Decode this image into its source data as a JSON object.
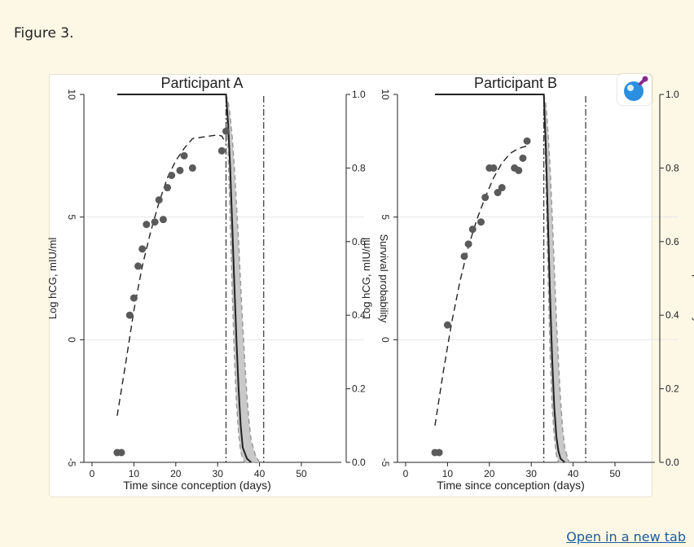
{
  "caption": "Figure 3.",
  "link_text": "Open in a new tab",
  "colors": {
    "curve": "#222222",
    "points": "#5a5a5a",
    "band": "#c9c9c9",
    "ref_line": "#e6e6e6",
    "link": "#1a5c9a"
  },
  "icons": {
    "zoom": "magnifier-icon"
  },
  "chart_data": [
    {
      "type": "scatter",
      "title": "Participant A",
      "xlabel": "Time since conception (days)",
      "ylabel": "Log hCG, mIU/ml",
      "y2label": "Survival probability",
      "xlim": [
        0,
        50
      ],
      "ylim": [
        -5,
        10
      ],
      "y2lim": [
        0,
        1
      ],
      "xticks": [
        "0",
        "10",
        "20",
        "30",
        "40",
        "50"
      ],
      "yticks": [
        "-5",
        "0",
        "5",
        "10"
      ],
      "y2ticks": [
        "0.0",
        "0.2",
        "0.4",
        "0.6",
        "0.8",
        "1.0"
      ],
      "points": {
        "x": [
          6,
          7,
          9,
          10,
          11,
          12,
          13,
          15,
          16,
          17,
          18,
          19,
          21,
          22,
          24,
          31,
          32
        ],
        "y": [
          -4.6,
          -4.6,
          1.0,
          1.7,
          3.0,
          3.7,
          4.7,
          4.8,
          5.7,
          4.9,
          6.2,
          6.7,
          6.9,
          7.5,
          7.0,
          7.7,
          8.5
        ]
      },
      "fitted_curve": {
        "x": [
          6,
          8,
          10,
          12,
          14,
          16,
          18,
          20,
          22,
          24,
          26,
          28,
          30,
          31,
          32
        ],
        "y": [
          -3.1,
          -1.0,
          1.2,
          3.0,
          4.4,
          5.6,
          6.6,
          7.3,
          7.8,
          8.2,
          8.25,
          8.3,
          8.35,
          8.3,
          8.0
        ]
      },
      "survival": {
        "x": [
          6,
          32,
          32.5,
          33,
          33.5,
          34,
          34.5,
          35,
          35.5,
          36,
          37,
          38
        ],
        "y": [
          1.0,
          1.0,
          0.92,
          0.8,
          0.64,
          0.48,
          0.33,
          0.2,
          0.1,
          0.04,
          0.01,
          0.0
        ]
      },
      "survival_band": {
        "x": [
          32,
          32.5,
          33,
          33.5,
          34,
          34.5,
          35,
          35.5,
          36,
          36.5,
          37,
          37.5,
          38,
          39,
          40
        ],
        "upper": [
          1.0,
          0.98,
          0.94,
          0.88,
          0.8,
          0.7,
          0.6,
          0.48,
          0.37,
          0.27,
          0.18,
          0.11,
          0.06,
          0.02,
          0.0
        ],
        "lower": [
          1.0,
          0.85,
          0.66,
          0.46,
          0.29,
          0.16,
          0.08,
          0.03,
          0.01,
          0.0,
          0.0,
          0.0,
          0.0,
          0.0,
          0.0
        ]
      },
      "vlines": [
        32,
        41
      ]
    },
    {
      "type": "scatter",
      "title": "Participant B",
      "xlabel": "Time since conception (days)",
      "ylabel": "Log hCG, mIU/ml",
      "y2label": "Survival probability",
      "xlim": [
        0,
        50
      ],
      "ylim": [
        -5,
        10
      ],
      "y2lim": [
        0,
        1
      ],
      "xticks": [
        "0",
        "10",
        "20",
        "30",
        "40",
        "50"
      ],
      "yticks": [
        "-5",
        "0",
        "5",
        "10"
      ],
      "y2ticks": [
        "0.0",
        "0.2",
        "0.4",
        "0.6",
        "0.8",
        "1.0"
      ],
      "points": {
        "x": [
          7,
          8,
          10,
          14,
          15,
          16,
          18,
          19,
          20,
          21,
          22,
          23,
          26,
          27,
          28,
          29
        ],
        "y": [
          -4.6,
          -4.6,
          0.6,
          3.4,
          3.9,
          4.5,
          4.8,
          5.8,
          7.0,
          7.0,
          6.0,
          6.2,
          7.0,
          6.9,
          7.4,
          8.1
        ]
      },
      "fitted_curve": {
        "x": [
          7,
          9,
          11,
          13,
          15,
          17,
          19,
          21,
          23,
          25,
          27,
          29
        ],
        "y": [
          -3.5,
          -1.3,
          0.7,
          2.4,
          3.8,
          4.9,
          5.8,
          6.6,
          7.2,
          7.6,
          7.8,
          7.9
        ]
      },
      "survival": {
        "x": [
          7,
          33,
          33.5,
          34,
          34.5,
          35,
          35.5,
          36,
          36.5,
          37,
          38
        ],
        "y": [
          1.0,
          1.0,
          0.85,
          0.65,
          0.45,
          0.28,
          0.15,
          0.07,
          0.03,
          0.01,
          0.0
        ]
      },
      "survival_band": {
        "x": [
          33,
          33.5,
          34,
          34.5,
          35,
          35.5,
          36,
          36.5,
          37,
          37.5,
          38,
          39
        ],
        "upper": [
          1.0,
          0.97,
          0.9,
          0.8,
          0.67,
          0.53,
          0.39,
          0.27,
          0.17,
          0.09,
          0.04,
          0.0
        ],
        "lower": [
          1.0,
          0.78,
          0.52,
          0.3,
          0.15,
          0.07,
          0.02,
          0.0,
          0.0,
          0.0,
          0.0,
          0.0
        ]
      },
      "vlines": [
        33,
        43
      ]
    }
  ]
}
